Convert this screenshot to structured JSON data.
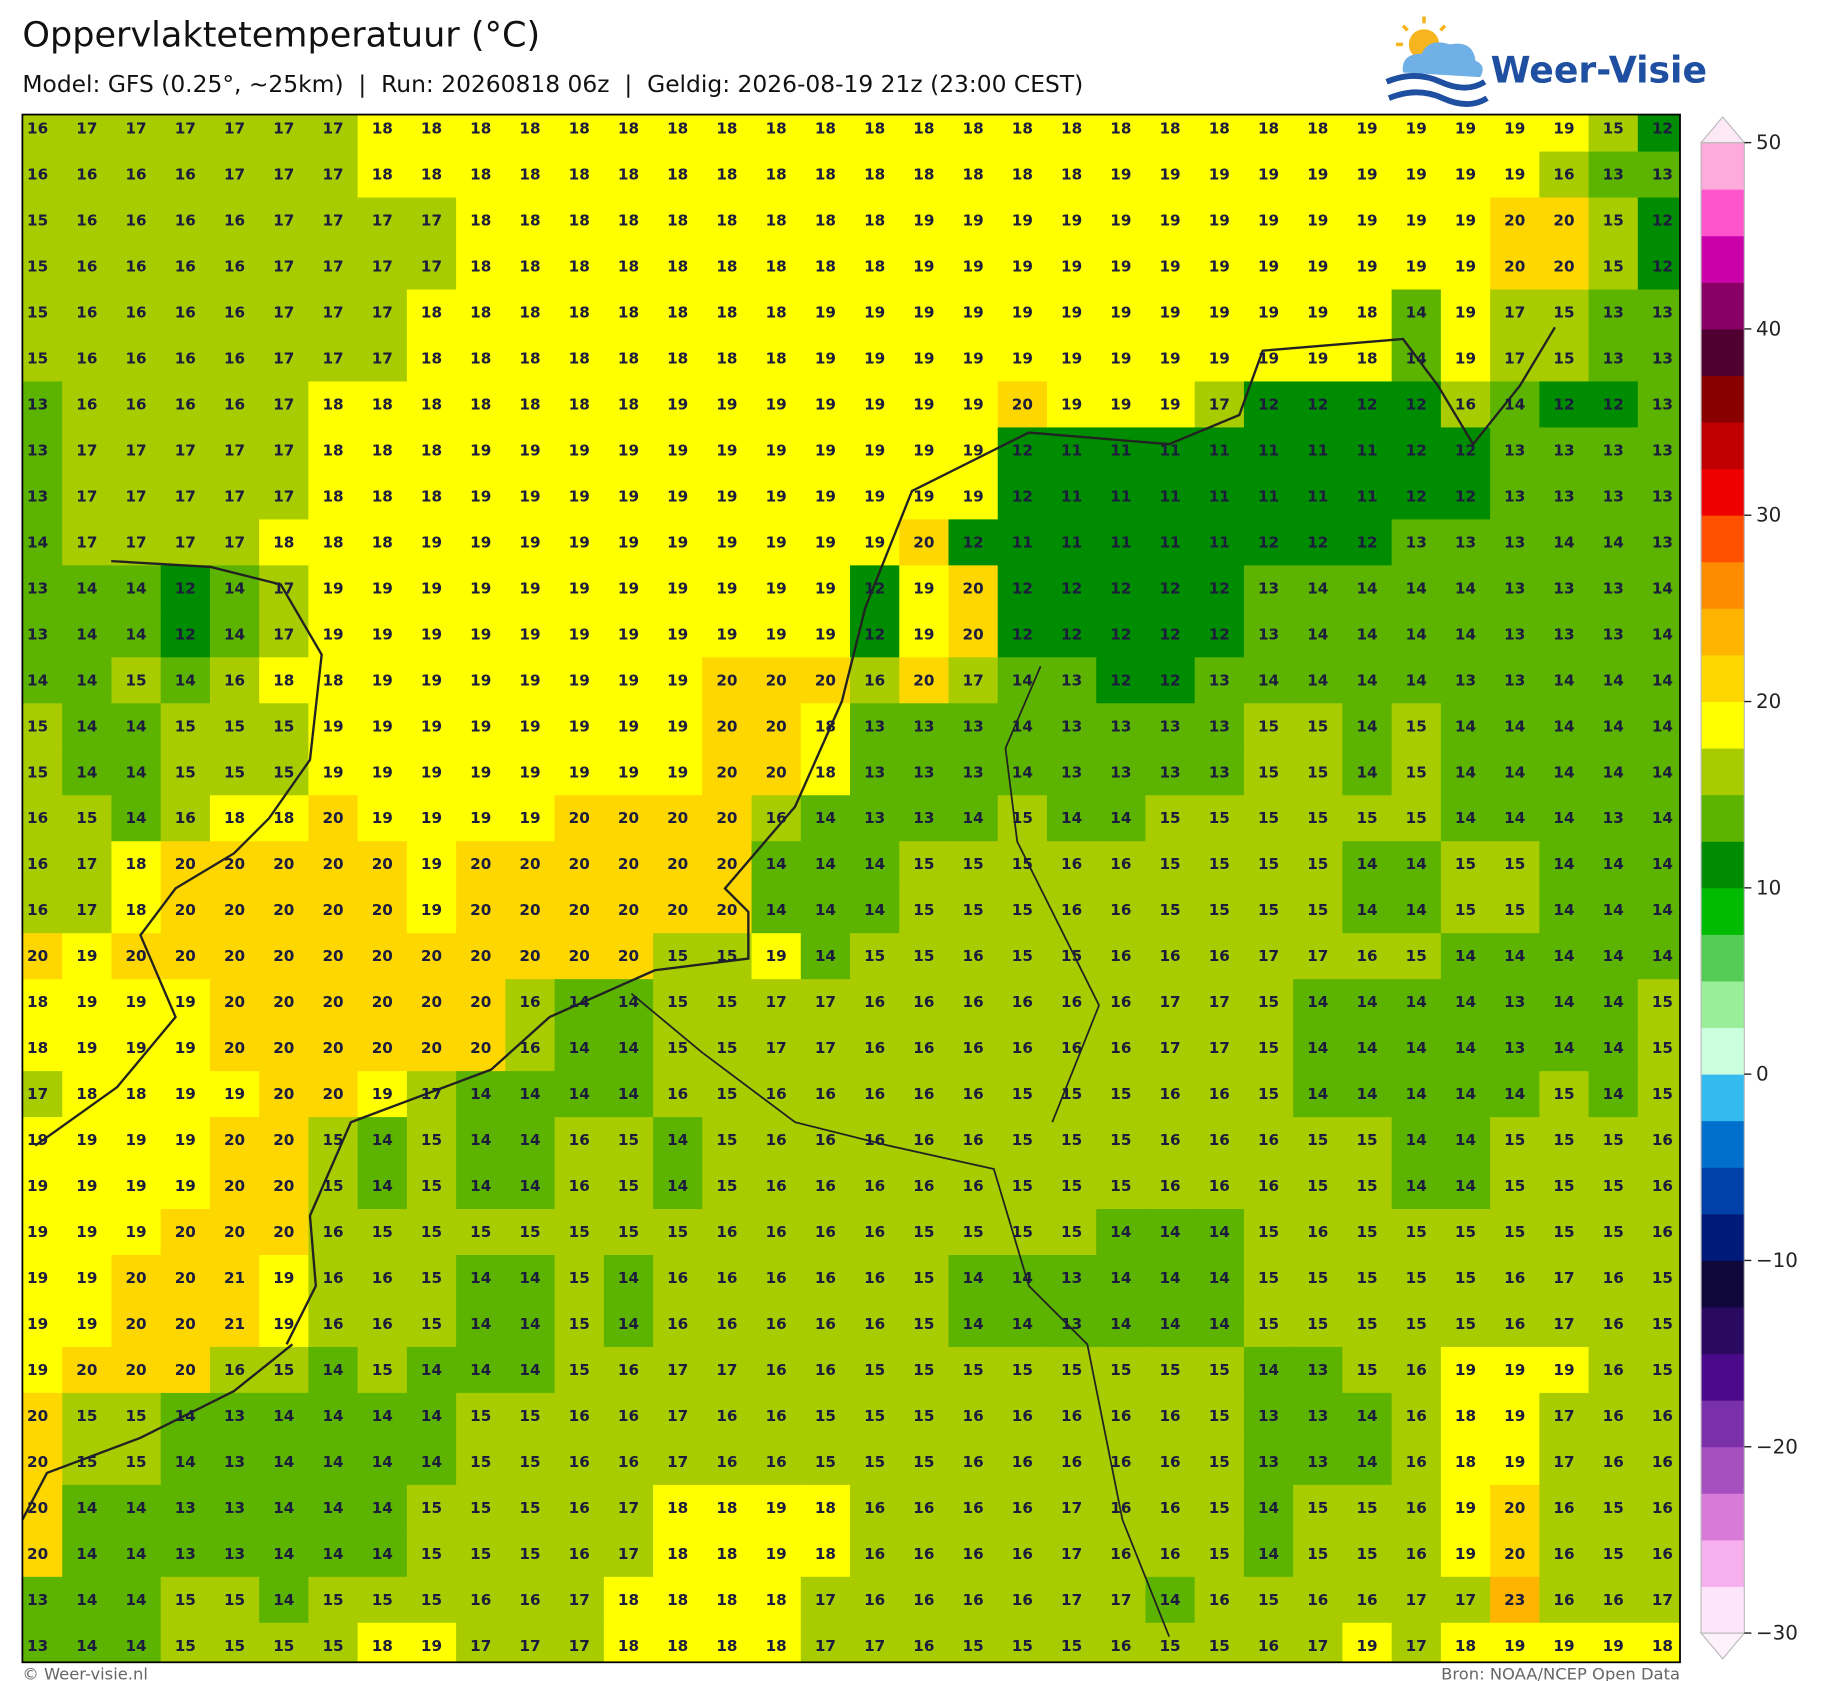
{
  "header": {
    "title": "Oppervlaktetemperatuur (°C)",
    "subtitle": "Model: GFS (0.25°, ~25km)  |  Run: 20260818 06z  |  Geldig: 2026-08-19 21z (23:00 CEST)"
  },
  "logo": "Weer-Visie",
  "map": {
    "grid": [
      [
        16,
        17,
        17,
        17,
        17,
        17,
        17,
        18,
        18,
        18,
        18,
        18,
        18,
        18,
        18,
        18,
        18,
        18,
        18,
        18,
        18,
        18,
        18,
        18,
        18,
        18,
        18,
        19,
        19,
        19,
        19,
        19,
        15,
        12
      ],
      [
        16,
        16,
        16,
        16,
        17,
        17,
        17,
        18,
        18,
        18,
        18,
        18,
        18,
        18,
        18,
        18,
        18,
        18,
        18,
        18,
        18,
        18,
        19,
        19,
        19,
        19,
        19,
        19,
        19,
        19,
        19,
        16,
        13,
        13
      ],
      [
        15,
        16,
        16,
        16,
        16,
        17,
        17,
        17,
        17,
        18,
        18,
        18,
        18,
        18,
        18,
        18,
        18,
        18,
        19,
        19,
        19,
        19,
        19,
        19,
        19,
        19,
        19,
        19,
        19,
        19,
        20,
        20,
        15,
        12
      ],
      [
        15,
        16,
        16,
        16,
        16,
        17,
        17,
        17,
        17,
        18,
        18,
        18,
        18,
        18,
        18,
        18,
        18,
        18,
        19,
        19,
        19,
        19,
        19,
        19,
        19,
        19,
        19,
        19,
        19,
        19,
        20,
        20,
        15,
        12
      ],
      [
        15,
        16,
        16,
        16,
        16,
        17,
        17,
        17,
        18,
        18,
        18,
        18,
        18,
        18,
        18,
        18,
        19,
        19,
        19,
        19,
        19,
        19,
        19,
        19,
        19,
        19,
        19,
        18,
        14,
        19,
        17,
        15,
        13,
        13
      ],
      [
        15,
        16,
        16,
        16,
        16,
        17,
        17,
        17,
        18,
        18,
        18,
        18,
        18,
        18,
        18,
        18,
        19,
        19,
        19,
        19,
        19,
        19,
        19,
        19,
        19,
        19,
        19,
        18,
        14,
        19,
        17,
        15,
        13,
        13
      ],
      [
        13,
        16,
        16,
        16,
        16,
        17,
        18,
        18,
        18,
        18,
        18,
        18,
        18,
        19,
        19,
        19,
        19,
        19,
        19,
        19,
        20,
        19,
        19,
        19,
        17,
        12,
        12,
        12,
        12,
        16,
        14,
        12,
        12,
        13
      ],
      [
        13,
        17,
        17,
        17,
        17,
        17,
        18,
        18,
        18,
        19,
        19,
        19,
        19,
        19,
        19,
        19,
        19,
        19,
        19,
        19,
        12,
        11,
        11,
        11,
        11,
        11,
        11,
        11,
        12,
        12,
        13,
        13,
        13,
        13
      ],
      [
        13,
        17,
        17,
        17,
        17,
        17,
        18,
        18,
        18,
        19,
        19,
        19,
        19,
        19,
        19,
        19,
        19,
        19,
        19,
        19,
        12,
        11,
        11,
        11,
        11,
        11,
        11,
        11,
        12,
        12,
        13,
        13,
        13,
        13
      ],
      [
        14,
        17,
        17,
        17,
        17,
        18,
        18,
        18,
        19,
        19,
        19,
        19,
        19,
        19,
        19,
        19,
        19,
        19,
        20,
        12,
        11,
        11,
        11,
        11,
        11,
        12,
        12,
        12,
        13,
        13,
        13,
        14,
        14,
        13
      ],
      [
        13,
        14,
        14,
        12,
        14,
        17,
        19,
        19,
        19,
        19,
        19,
        19,
        19,
        19,
        19,
        19,
        19,
        12,
        19,
        20,
        12,
        12,
        12,
        12,
        12,
        13,
        14,
        14,
        14,
        14,
        13,
        13,
        13,
        14
      ],
      [
        13,
        14,
        14,
        12,
        14,
        17,
        19,
        19,
        19,
        19,
        19,
        19,
        19,
        19,
        19,
        19,
        19,
        12,
        19,
        20,
        12,
        12,
        12,
        12,
        12,
        13,
        14,
        14,
        14,
        14,
        13,
        13,
        13,
        14
      ],
      [
        14,
        14,
        15,
        14,
        16,
        18,
        18,
        19,
        19,
        19,
        19,
        19,
        19,
        19,
        20,
        20,
        20,
        16,
        20,
        17,
        14,
        13,
        12,
        12,
        13,
        14,
        14,
        14,
        14,
        13,
        13,
        14,
        14,
        14
      ],
      [
        15,
        14,
        14,
        15,
        15,
        15,
        19,
        19,
        19,
        19,
        19,
        19,
        19,
        19,
        20,
        20,
        18,
        13,
        13,
        13,
        14,
        13,
        13,
        13,
        13,
        15,
        15,
        14,
        15,
        14,
        14,
        14,
        14,
        14
      ],
      [
        15,
        14,
        14,
        15,
        15,
        15,
        19,
        19,
        19,
        19,
        19,
        19,
        19,
        19,
        20,
        20,
        18,
        13,
        13,
        13,
        14,
        13,
        13,
        13,
        13,
        15,
        15,
        14,
        15,
        14,
        14,
        14,
        14,
        14
      ],
      [
        16,
        15,
        14,
        16,
        18,
        18,
        20,
        19,
        19,
        19,
        19,
        20,
        20,
        20,
        20,
        16,
        14,
        13,
        13,
        14,
        15,
        14,
        14,
        15,
        15,
        15,
        15,
        15,
        15,
        14,
        14,
        14,
        13,
        14
      ],
      [
        16,
        17,
        18,
        20,
        20,
        20,
        20,
        20,
        19,
        20,
        20,
        20,
        20,
        20,
        20,
        14,
        14,
        14,
        15,
        15,
        15,
        16,
        16,
        15,
        15,
        15,
        15,
        14,
        14,
        15,
        15,
        14,
        14,
        14
      ],
      [
        16,
        17,
        18,
        20,
        20,
        20,
        20,
        20,
        19,
        20,
        20,
        20,
        20,
        20,
        20,
        14,
        14,
        14,
        15,
        15,
        15,
        16,
        16,
        15,
        15,
        15,
        15,
        14,
        14,
        15,
        15,
        14,
        14,
        14
      ],
      [
        20,
        19,
        20,
        20,
        20,
        20,
        20,
        20,
        20,
        20,
        20,
        20,
        20,
        15,
        15,
        19,
        14,
        15,
        15,
        16,
        15,
        15,
        16,
        16,
        16,
        17,
        17,
        16,
        15,
        14,
        14,
        14,
        14,
        14
      ],
      [
        18,
        19,
        19,
        19,
        20,
        20,
        20,
        20,
        20,
        20,
        16,
        14,
        14,
        15,
        15,
        17,
        17,
        16,
        16,
        16,
        16,
        16,
        16,
        17,
        17,
        15,
        14,
        14,
        14,
        14,
        13,
        14,
        14,
        15
      ],
      [
        18,
        19,
        19,
        19,
        20,
        20,
        20,
        20,
        20,
        20,
        16,
        14,
        14,
        15,
        15,
        17,
        17,
        16,
        16,
        16,
        16,
        16,
        16,
        17,
        17,
        15,
        14,
        14,
        14,
        14,
        13,
        14,
        14,
        15
      ],
      [
        17,
        18,
        18,
        19,
        19,
        20,
        20,
        19,
        17,
        14,
        14,
        14,
        14,
        16,
        15,
        16,
        16,
        16,
        16,
        16,
        15,
        15,
        15,
        16,
        16,
        15,
        14,
        14,
        14,
        14,
        14,
        15,
        14,
        15
      ],
      [
        19,
        19,
        19,
        19,
        20,
        20,
        15,
        14,
        15,
        14,
        14,
        16,
        15,
        14,
        15,
        16,
        16,
        16,
        16,
        16,
        15,
        15,
        15,
        16,
        16,
        16,
        15,
        15,
        14,
        14,
        15,
        15,
        15,
        16
      ],
      [
        19,
        19,
        19,
        19,
        20,
        20,
        15,
        14,
        15,
        14,
        14,
        16,
        15,
        14,
        15,
        16,
        16,
        16,
        16,
        16,
        15,
        15,
        15,
        16,
        16,
        16,
        15,
        15,
        14,
        14,
        15,
        15,
        15,
        16
      ],
      [
        19,
        19,
        19,
        20,
        20,
        20,
        16,
        15,
        15,
        15,
        15,
        15,
        15,
        15,
        16,
        16,
        16,
        16,
        15,
        15,
        15,
        15,
        14,
        14,
        14,
        15,
        16,
        15,
        15,
        15,
        15,
        15,
        15,
        16
      ],
      [
        19,
        19,
        20,
        20,
        21,
        19,
        16,
        16,
        15,
        14,
        14,
        15,
        14,
        16,
        16,
        16,
        16,
        16,
        15,
        14,
        14,
        13,
        14,
        14,
        14,
        15,
        15,
        15,
        15,
        15,
        16,
        17,
        16,
        15
      ],
      [
        19,
        19,
        20,
        20,
        21,
        19,
        16,
        16,
        15,
        14,
        14,
        15,
        14,
        16,
        16,
        16,
        16,
        16,
        15,
        14,
        14,
        13,
        14,
        14,
        14,
        15,
        15,
        15,
        15,
        15,
        16,
        17,
        16,
        15
      ],
      [
        19,
        20,
        20,
        20,
        16,
        15,
        14,
        15,
        14,
        14,
        14,
        15,
        16,
        17,
        17,
        16,
        16,
        15,
        15,
        15,
        15,
        15,
        15,
        15,
        15,
        14,
        13,
        15,
        16,
        19,
        19,
        19,
        16,
        15
      ],
      [
        20,
        15,
        15,
        14,
        13,
        14,
        14,
        14,
        14,
        15,
        15,
        16,
        16,
        17,
        16,
        16,
        15,
        15,
        15,
        16,
        16,
        16,
        16,
        16,
        15,
        13,
        13,
        14,
        16,
        18,
        19,
        17,
        16,
        16
      ],
      [
        20,
        15,
        15,
        14,
        13,
        14,
        14,
        14,
        14,
        15,
        15,
        16,
        16,
        17,
        16,
        16,
        15,
        15,
        15,
        16,
        16,
        16,
        16,
        16,
        15,
        13,
        13,
        14,
        16,
        18,
        19,
        17,
        16,
        16
      ],
      [
        20,
        14,
        14,
        13,
        13,
        14,
        14,
        14,
        15,
        15,
        15,
        16,
        17,
        18,
        18,
        19,
        18,
        16,
        16,
        16,
        16,
        17,
        16,
        16,
        15,
        14,
        15,
        15,
        16,
        19,
        20,
        16,
        15,
        16
      ],
      [
        20,
        14,
        14,
        13,
        13,
        14,
        14,
        14,
        15,
        15,
        15,
        16,
        17,
        18,
        18,
        19,
        18,
        16,
        16,
        16,
        16,
        17,
        16,
        16,
        15,
        14,
        15,
        15,
        16,
        19,
        20,
        16,
        15,
        16
      ],
      [
        13,
        14,
        14,
        15,
        15,
        14,
        15,
        15,
        15,
        16,
        16,
        17,
        18,
        18,
        18,
        18,
        17,
        16,
        16,
        16,
        16,
        17,
        17,
        14,
        16,
        15,
        16,
        16,
        17,
        17,
        23,
        16,
        16,
        17
      ],
      [
        13,
        14,
        14,
        15,
        15,
        15,
        15,
        18,
        19,
        17,
        17,
        17,
        18,
        18,
        18,
        18,
        17,
        17,
        16,
        15,
        15,
        15,
        16,
        15,
        15,
        16,
        17,
        19,
        17,
        18,
        19,
        19,
        19,
        18
      ]
    ]
  },
  "colorbar": {
    "clim": [
      -30,
      50
    ],
    "ticks": [
      50,
      40,
      30,
      20,
      10,
      0,
      {
        "value": -10,
        "label": "−10"
      },
      {
        "value": -20,
        "label": "−20"
      },
      {
        "value": -30,
        "label": "−30"
      }
    ],
    "colors": [
      "#fde6fb",
      "#f7b0ee",
      "#d87ad8",
      "#a650c0",
      "#7a30a8",
      "#4a0a8a",
      "#2a0a60",
      "#10083a",
      "#001a7a",
      "#0040a8",
      "#0070cc",
      "#33bbf0",
      "#ccffdd",
      "#99ee99",
      "#55cc55",
      "#00bb00",
      "#008c00",
      "#5cb400",
      "#a8cc00",
      "#ffff00",
      "#ffd700",
      "#ffb400",
      "#ff8c00",
      "#ff5000",
      "#ee0000",
      "#c00000",
      "#8a0000",
      "#500030",
      "#880066",
      "#cc00aa",
      "#ff55cc",
      "#ffaadd"
    ],
    "over_color": "#fde8f8",
    "under_color": "#fdf2fb"
  },
  "footer": {
    "left": "© Weer-visie.nl",
    "right": "Bron: NOAA/NCEP Open Data"
  }
}
